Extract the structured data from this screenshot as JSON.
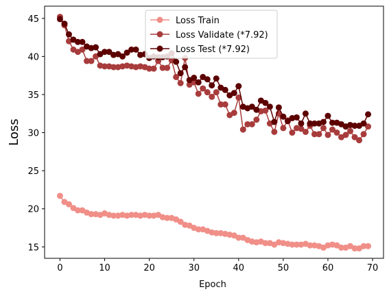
{
  "chart_data": {
    "type": "line",
    "xlabel": "Epoch",
    "ylabel": "Loss",
    "xlim": [
      -3.45,
      72.45
    ],
    "ylim": [
      13.5,
      46.6
    ],
    "xticks": [
      0,
      10,
      20,
      30,
      40,
      50,
      60,
      70
    ],
    "yticks": [
      15,
      20,
      25,
      30,
      35,
      40,
      45
    ],
    "grid": false,
    "legend_placement": "top-center",
    "x": [
      0,
      1,
      2,
      3,
      4,
      5,
      6,
      7,
      8,
      9,
      10,
      11,
      12,
      13,
      14,
      15,
      16,
      17,
      18,
      19,
      20,
      21,
      22,
      23,
      24,
      25,
      26,
      27,
      28,
      29,
      30,
      31,
      32,
      33,
      34,
      35,
      36,
      37,
      38,
      39,
      40,
      41,
      42,
      43,
      44,
      45,
      46,
      47,
      48,
      49,
      50,
      51,
      52,
      53,
      54,
      55,
      56,
      57,
      58,
      59,
      60,
      61,
      62,
      63,
      64,
      65,
      66,
      67,
      68,
      69
    ],
    "series": [
      {
        "name": "Loss Train",
        "color": "#f08f88",
        "values": [
          21.7,
          20.9,
          20.6,
          20.1,
          19.8,
          19.8,
          19.5,
          19.3,
          19.3,
          19.2,
          19.4,
          19.2,
          19.1,
          19.1,
          19.2,
          19.1,
          19.2,
          19.2,
          19.1,
          19.2,
          19.1,
          19.1,
          19.2,
          18.9,
          18.8,
          18.8,
          18.6,
          18.3,
          17.9,
          17.8,
          17.5,
          17.3,
          17.3,
          17.1,
          16.9,
          16.8,
          16.8,
          16.7,
          16.6,
          16.5,
          16.2,
          16.2,
          15.9,
          15.7,
          15.6,
          15.7,
          15.5,
          15.5,
          15.3,
          15.6,
          15.5,
          15.4,
          15.3,
          15.3,
          15.3,
          15.4,
          15.2,
          15.2,
          15.1,
          14.9,
          15.2,
          15.3,
          15.2,
          14.9,
          14.9,
          15.1,
          14.8,
          14.8,
          15.1,
          15.1
        ]
      },
      {
        "name": "Loss Validate (*7.92)",
        "color": "#a83c3c",
        "values": [
          45.2,
          44.1,
          42.0,
          40.9,
          40.6,
          40.9,
          39.4,
          39.4,
          40.0,
          38.8,
          38.7,
          38.7,
          38.6,
          38.6,
          38.7,
          38.8,
          38.7,
          38.6,
          38.7,
          38.6,
          38.4,
          38.4,
          39.4,
          38.5,
          38.5,
          39.5,
          37.3,
          36.5,
          39.8,
          36.3,
          36.6,
          35.1,
          35.8,
          35.3,
          34.7,
          35.3,
          33.7,
          33.7,
          32.3,
          32.6,
          34.6,
          30.4,
          31.1,
          31.1,
          31.7,
          32.8,
          32.9,
          31.2,
          30.1,
          32.5,
          30.6,
          31.6,
          30.0,
          30.6,
          30.5,
          30.1,
          30.9,
          29.8,
          29.8,
          30.6,
          29.7,
          30.4,
          30.0,
          29.4,
          29.7,
          30.2,
          29.4,
          29.0,
          29.8,
          30.8
        ]
      },
      {
        "name": "Loss Test (*7.92)",
        "color": "#5c0000",
        "values": [
          44.9,
          44.3,
          42.9,
          42.2,
          41.9,
          41.9,
          41.3,
          41.1,
          41.2,
          40.3,
          40.6,
          40.6,
          40.2,
          40.3,
          40.0,
          40.5,
          40.9,
          40.9,
          40.2,
          40.3,
          39.8,
          40.0,
          39.9,
          39.9,
          40.0,
          40.4,
          39.3,
          37.8,
          38.6,
          36.9,
          37.2,
          36.6,
          37.3,
          37.0,
          36.2,
          37.1,
          35.9,
          35.6,
          34.9,
          35.2,
          36.1,
          33.4,
          33.2,
          33.4,
          33.0,
          34.2,
          33.9,
          33.4,
          31.4,
          33.3,
          32.1,
          31.5,
          31.9,
          32.0,
          31.2,
          32.5,
          31.2,
          31.2,
          31.2,
          31.4,
          32.2,
          31.3,
          31.3,
          31.1,
          30.8,
          31.0,
          30.9,
          30.9,
          31.2,
          32.4
        ]
      }
    ]
  }
}
